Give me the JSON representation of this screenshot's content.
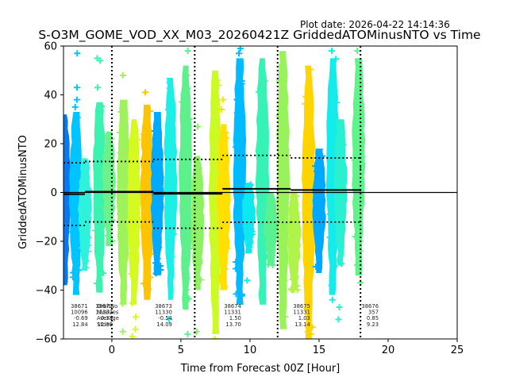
{
  "plot_date_label": "Plot date: 2026-04-22 14:14:36",
  "chart_data": {
    "type": "scatter",
    "title": "S-O3M_GOME_VOD_XX_M03_20260421Z GriddedATOMinusNTO vs Time",
    "xlabel": "Time from Forecast 00Z [Hour]",
    "ylabel": "GriddedATOMinusNTO",
    "xlim": [
      -3.5,
      25
    ],
    "ylim": [
      -60,
      60
    ],
    "xticks": [
      0,
      5,
      10,
      15,
      20,
      25
    ],
    "yticks": [
      -60,
      -40,
      -20,
      0,
      20,
      40,
      60
    ],
    "grid": false,
    "marker": "+",
    "zero_line": 0,
    "forecast_boundaries": [
      0,
      6,
      12,
      18
    ],
    "stat_labels": [
      "OrbitNo",
      "NValues",
      "Average",
      "Stdev"
    ],
    "orbits": [
      {
        "orbit": "38671",
        "nvalues": "10096",
        "average": "-0.69",
        "stdev": "12.84",
        "x_start": -3.5,
        "x_end": -1.95,
        "avg": -0.69,
        "sd": 12.84,
        "label_x": -3.0,
        "show_labels": false
      },
      {
        "orbit": "38672",
        "nvalues": "11332",
        "average": "0.33",
        "stdev": "12.38",
        "x_start": -1.95,
        "x_end": 3.0,
        "avg": 0.33,
        "sd": 12.38,
        "label_x": -1.2,
        "show_labels": true
      },
      {
        "orbit": "38673",
        "nvalues": "11330",
        "average": "-0.54",
        "stdev": "14.09",
        "x_start": 3.0,
        "x_end": 8.0,
        "avg": -0.54,
        "sd": 14.09,
        "label_x": 3.1,
        "show_labels": false
      },
      {
        "orbit": "38674",
        "nvalues": "11331",
        "average": "1.50",
        "stdev": "13.70",
        "x_start": 8.0,
        "x_end": 12.95,
        "avg": 1.5,
        "sd": 13.7,
        "label_x": 8.1,
        "show_labels": false
      },
      {
        "orbit": "38675",
        "nvalues": "11331",
        "average": "1.03",
        "stdev": "13.14",
        "x_start": 12.95,
        "x_end": 17.95,
        "avg": 1.03,
        "sd": 13.14,
        "label_x": 13.1,
        "show_labels": false
      },
      {
        "orbit": "38676",
        "nvalues": "357",
        "average": "0.85",
        "stdev": "9.23",
        "x_start": 17.95,
        "x_end": 18.05,
        "avg": 0.85,
        "sd": 9.23,
        "label_x": 18.05,
        "show_labels": false
      }
    ],
    "stripes": [
      {
        "x": -3.45,
        "color": "#0a78f0",
        "ymin": -38,
        "ymax": 32
      },
      {
        "x": -2.6,
        "color": "#00c4ff",
        "ymin": -42,
        "ymax": 33,
        "outliers": [
          57,
          43,
          38,
          35
        ]
      },
      {
        "x": -1.95,
        "color": "#2ef2dc",
        "ymin": -32,
        "ymax": 14,
        "outliers": [
          -28,
          -26
        ]
      },
      {
        "x": -0.9,
        "color": "#3cf2b0",
        "ymin": -41,
        "ymax": 37,
        "outliers": [
          55,
          54,
          43
        ]
      },
      {
        "x": -0.2,
        "color": "#6cf28a",
        "ymin": -22,
        "ymax": 25,
        "outliers": [
          -20
        ]
      },
      {
        "x": 0.85,
        "color": "#9ef25c",
        "ymin": -46,
        "ymax": 38,
        "outliers": [
          48,
          -57
        ]
      },
      {
        "x": 1.6,
        "color": "#d4fa22",
        "ymin": -46,
        "ymax": 30,
        "outliers": [
          -51,
          -56,
          -59
        ]
      },
      {
        "x": 2.55,
        "color": "#ffc400",
        "ymin": -44,
        "ymax": 36,
        "outliers": [
          41
        ]
      },
      {
        "x": 3.3,
        "color": "#00aaff",
        "ymin": -34,
        "ymax": 33
      },
      {
        "x": 4.25,
        "color": "#1cf0e6",
        "ymin": -44,
        "ymax": 47,
        "outliers": [
          -52
        ]
      },
      {
        "x": 5.35,
        "color": "#5ef08c",
        "ymin": -48,
        "ymax": 52,
        "outliers": [
          58,
          -58
        ]
      },
      {
        "x": 6.2,
        "color": "#8cf262",
        "ymin": -40,
        "ymax": 15,
        "outliers": [
          27,
          -57
        ]
      },
      {
        "x": 7.5,
        "color": "#ccfa24",
        "ymin": -58,
        "ymax": 50,
        "outliers": [
          -60
        ]
      },
      {
        "x": 8.1,
        "color": "#ffe000",
        "ymin": -40,
        "ymax": 28,
        "outliers": [
          38,
          34
        ]
      },
      {
        "x": 9.25,
        "color": "#00bcff",
        "ymin": -46,
        "ymax": 55,
        "outliers": [
          59,
          57
        ]
      },
      {
        "x": 9.9,
        "color": "#10e8f0",
        "ymin": -25,
        "ymax": 4,
        "outliers": [
          -36
        ]
      },
      {
        "x": 10.9,
        "color": "#36f2b4",
        "ymin": -46,
        "ymax": 55
      },
      {
        "x": 11.5,
        "color": "#58f290",
        "ymin": -30,
        "ymax": 0,
        "outliers": [
          -28
        ]
      },
      {
        "x": 12.4,
        "color": "#98f25c",
        "ymin": -56,
        "ymax": 58,
        "outliers": [
          -24
        ]
      },
      {
        "x": 13.2,
        "color": "#b0f44a",
        "ymin": -40,
        "ymax": 0,
        "outliers": [
          -33,
          -40
        ]
      },
      {
        "x": 14.25,
        "color": "#ffd400",
        "ymin": -60,
        "ymax": 52
      },
      {
        "x": 15.0,
        "color": "#00a8ff",
        "ymin": -33,
        "ymax": 18
      },
      {
        "x": 16.0,
        "color": "#14ecec",
        "ymin": -42,
        "ymax": 55,
        "outliers": [
          58,
          -38,
          -44
        ]
      },
      {
        "x": 16.55,
        "color": "#28f0d0",
        "ymin": -30,
        "ymax": 30,
        "outliers": [
          -47,
          -52
        ]
      },
      {
        "x": 17.85,
        "color": "#62f28c",
        "ymin": -34,
        "ymax": 55,
        "outliers": [
          58,
          -37
        ]
      }
    ]
  }
}
